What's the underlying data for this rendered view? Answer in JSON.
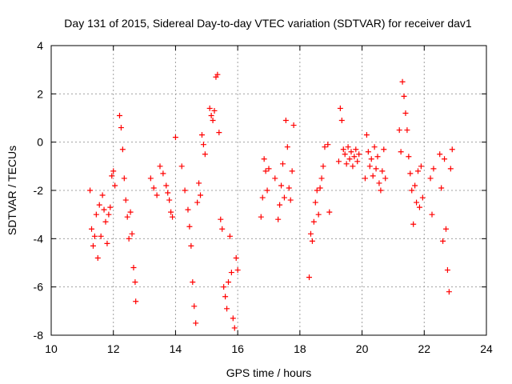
{
  "chart_data": {
    "type": "scatter",
    "title": "Day 131 of 2015, Sidereal Day-to-day VTEC variation (SDTVAR) for receiver dav1",
    "xlabel": "GPS time / hours",
    "ylabel": "SDTVAR / TECUs",
    "xlim": [
      10,
      24
    ],
    "ylim": [
      -8,
      4
    ],
    "xticks": [
      "10",
      "12",
      "14",
      "16",
      "18",
      "20",
      "22",
      "24"
    ],
    "yticks": [
      "-8",
      "-6",
      "-4",
      "-2",
      "0",
      "2",
      "4"
    ],
    "grid": true,
    "marker": "+",
    "marker_color": "#ff0000",
    "series": [
      {
        "name": "SDTVAR",
        "points": [
          [
            11.25,
            -2.0
          ],
          [
            11.3,
            -3.6
          ],
          [
            11.35,
            -4.3
          ],
          [
            11.4,
            -3.9
          ],
          [
            11.45,
            -3.0
          ],
          [
            11.5,
            -4.8
          ],
          [
            11.55,
            -2.6
          ],
          [
            11.6,
            -3.9
          ],
          [
            11.65,
            -2.2
          ],
          [
            11.7,
            -2.8
          ],
          [
            11.75,
            -3.3
          ],
          [
            11.8,
            -4.2
          ],
          [
            11.85,
            -3.0
          ],
          [
            11.9,
            -2.7
          ],
          [
            11.95,
            -1.4
          ],
          [
            12.0,
            -1.2
          ],
          [
            12.05,
            -1.8
          ],
          [
            12.2,
            1.1
          ],
          [
            12.25,
            0.6
          ],
          [
            12.3,
            -0.3
          ],
          [
            12.35,
            -1.5
          ],
          [
            12.4,
            -2.4
          ],
          [
            12.45,
            -3.1
          ],
          [
            12.5,
            -4.0
          ],
          [
            12.55,
            -2.9
          ],
          [
            12.6,
            -3.8
          ],
          [
            12.65,
            -5.2
          ],
          [
            12.7,
            -5.8
          ],
          [
            12.72,
            -6.6
          ],
          [
            13.2,
            -1.5
          ],
          [
            13.3,
            -1.9
          ],
          [
            13.4,
            -2.2
          ],
          [
            13.5,
            -1.0
          ],
          [
            13.6,
            -1.3
          ],
          [
            13.7,
            -1.8
          ],
          [
            13.75,
            -2.1
          ],
          [
            13.8,
            -2.4
          ],
          [
            13.85,
            -2.9
          ],
          [
            13.9,
            -3.1
          ],
          [
            14.0,
            0.2
          ],
          [
            14.2,
            -1.0
          ],
          [
            14.3,
            -2.0
          ],
          [
            14.4,
            -2.8
          ],
          [
            14.45,
            -3.5
          ],
          [
            14.5,
            -4.3
          ],
          [
            14.55,
            -5.8
          ],
          [
            14.6,
            -6.8
          ],
          [
            14.65,
            -7.5
          ],
          [
            14.7,
            -2.5
          ],
          [
            14.75,
            -1.7
          ],
          [
            14.8,
            -2.2
          ],
          [
            14.85,
            0.3
          ],
          [
            14.9,
            -0.1
          ],
          [
            14.95,
            -0.5
          ],
          [
            15.1,
            1.4
          ],
          [
            15.15,
            1.1
          ],
          [
            15.2,
            0.9
          ],
          [
            15.25,
            1.3
          ],
          [
            15.3,
            2.7
          ],
          [
            15.35,
            2.8
          ],
          [
            15.4,
            0.4
          ],
          [
            15.45,
            -3.2
          ],
          [
            15.5,
            -3.6
          ],
          [
            15.55,
            -6.0
          ],
          [
            15.6,
            -6.4
          ],
          [
            15.65,
            -6.9
          ],
          [
            15.7,
            -5.8
          ],
          [
            15.75,
            -3.9
          ],
          [
            15.8,
            -5.4
          ],
          [
            15.85,
            -7.3
          ],
          [
            15.9,
            -7.7
          ],
          [
            15.95,
            -4.8
          ],
          [
            16.0,
            -5.3
          ],
          [
            16.75,
            -3.1
          ],
          [
            16.8,
            -2.3
          ],
          [
            16.85,
            -0.7
          ],
          [
            16.9,
            -1.2
          ],
          [
            16.95,
            -2.0
          ],
          [
            17.0,
            -1.1
          ],
          [
            17.2,
            -1.5
          ],
          [
            17.3,
            -3.2
          ],
          [
            17.35,
            -2.6
          ],
          [
            17.4,
            -1.8
          ],
          [
            17.45,
            -0.9
          ],
          [
            17.5,
            -2.3
          ],
          [
            17.55,
            0.9
          ],
          [
            17.6,
            -0.2
          ],
          [
            17.65,
            -1.9
          ],
          [
            17.7,
            -2.4
          ],
          [
            17.75,
            -1.2
          ],
          [
            17.8,
            0.7
          ],
          [
            18.3,
            -5.6
          ],
          [
            18.35,
            -3.8
          ],
          [
            18.4,
            -4.1
          ],
          [
            18.45,
            -3.3
          ],
          [
            18.5,
            -2.5
          ],
          [
            18.55,
            -2.0
          ],
          [
            18.6,
            -3.0
          ],
          [
            18.65,
            -1.9
          ],
          [
            18.7,
            -1.5
          ],
          [
            18.75,
            -1.0
          ],
          [
            18.8,
            -0.2
          ],
          [
            18.9,
            -0.1
          ],
          [
            18.95,
            -2.9
          ],
          [
            19.25,
            -0.8
          ],
          [
            19.3,
            1.4
          ],
          [
            19.35,
            0.9
          ],
          [
            19.4,
            -0.3
          ],
          [
            19.45,
            -0.5
          ],
          [
            19.5,
            -0.9
          ],
          [
            19.55,
            -0.2
          ],
          [
            19.6,
            -0.7
          ],
          [
            19.65,
            -0.4
          ],
          [
            19.7,
            -1.0
          ],
          [
            19.75,
            -0.6
          ],
          [
            19.8,
            -0.3
          ],
          [
            19.85,
            -0.8
          ],
          [
            19.9,
            -0.5
          ],
          [
            20.1,
            -1.5
          ],
          [
            20.15,
            0.3
          ],
          [
            20.2,
            -0.4
          ],
          [
            20.25,
            -1.0
          ],
          [
            20.3,
            -0.7
          ],
          [
            20.35,
            -1.4
          ],
          [
            20.4,
            -0.2
          ],
          [
            20.45,
            -1.1
          ],
          [
            20.5,
            -0.6
          ],
          [
            20.55,
            -1.7
          ],
          [
            20.6,
            -2.0
          ],
          [
            20.65,
            -1.2
          ],
          [
            20.7,
            -0.3
          ],
          [
            20.75,
            -1.5
          ],
          [
            21.2,
            0.5
          ],
          [
            21.25,
            -0.4
          ],
          [
            21.3,
            2.5
          ],
          [
            21.35,
            1.9
          ],
          [
            21.4,
            1.2
          ],
          [
            21.45,
            0.5
          ],
          [
            21.5,
            -0.6
          ],
          [
            21.55,
            -1.3
          ],
          [
            21.6,
            -2.0
          ],
          [
            21.65,
            -3.4
          ],
          [
            21.7,
            -1.8
          ],
          [
            21.75,
            -2.5
          ],
          [
            21.8,
            -1.2
          ],
          [
            21.85,
            -2.7
          ],
          [
            21.9,
            -1.0
          ],
          [
            21.95,
            -2.3
          ],
          [
            22.2,
            -1.5
          ],
          [
            22.25,
            -3.0
          ],
          [
            22.3,
            -1.1
          ],
          [
            22.5,
            -0.5
          ],
          [
            22.55,
            -1.9
          ],
          [
            22.6,
            -4.1
          ],
          [
            22.65,
            -0.7
          ],
          [
            22.7,
            -3.6
          ],
          [
            22.75,
            -5.3
          ],
          [
            22.8,
            -6.2
          ],
          [
            22.85,
            -1.1
          ],
          [
            22.9,
            -0.3
          ]
        ]
      }
    ]
  }
}
